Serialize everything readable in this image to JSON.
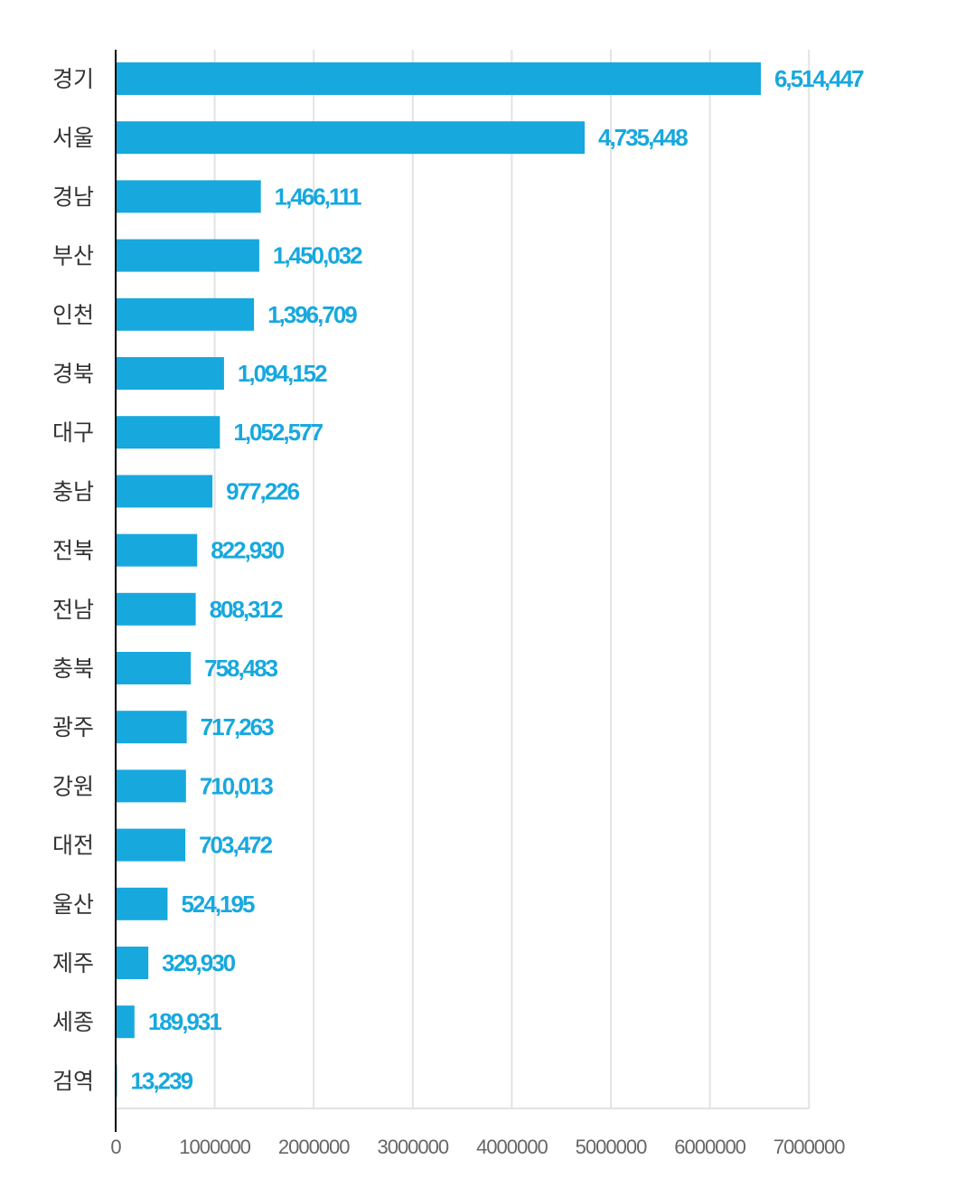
{
  "chart_data": {
    "type": "bar",
    "orientation": "horizontal",
    "title": "",
    "xlabel": "",
    "ylabel": "",
    "categories": [
      "경기",
      "서울",
      "경남",
      "부산",
      "인천",
      "경북",
      "대구",
      "충남",
      "전북",
      "전남",
      "충북",
      "광주",
      "강원",
      "대전",
      "울산",
      "제주",
      "세종",
      "검역"
    ],
    "values": [
      6514447,
      4735448,
      1466111,
      1450032,
      1396709,
      1094152,
      1052577,
      977226,
      822930,
      808312,
      758483,
      717263,
      710013,
      703472,
      524195,
      329930,
      189931,
      13239
    ],
    "value_labels": [
      "6,514,447",
      "4,735,448",
      "1,466,111",
      "1,450,032",
      "1,396,709",
      "1,094,152",
      "1,052,577",
      "977,226",
      "822,930",
      "808,312",
      "758,483",
      "717,263",
      "710,013",
      "703,472",
      "524,195",
      "329,930",
      "189,931",
      "13,239"
    ],
    "xlim": [
      0,
      7000000
    ],
    "x_ticks": [
      0,
      1000000,
      2000000,
      3000000,
      4000000,
      5000000,
      6000000,
      7000000
    ],
    "x_tick_labels": [
      "0",
      "1000000",
      "2000000",
      "3000000",
      "4000000",
      "5000000",
      "6000000",
      "7000000"
    ],
    "grid": "vertical",
    "legend": "none",
    "colors": {
      "bar": "#17a8de",
      "value_label": "#17a8de",
      "grid": "#e3e3e3",
      "axis": "#000000"
    }
  }
}
